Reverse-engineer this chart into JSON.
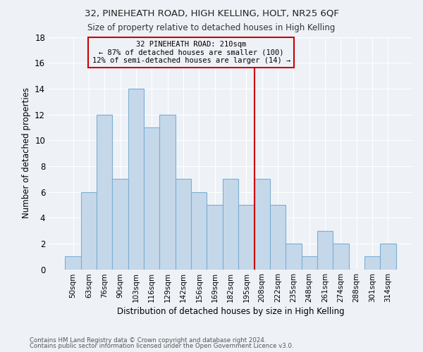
{
  "title": "32, PINEHEATH ROAD, HIGH KELLING, HOLT, NR25 6QF",
  "subtitle": "Size of property relative to detached houses in High Kelling",
  "xlabel": "Distribution of detached houses by size in High Kelling",
  "ylabel": "Number of detached properties",
  "footnote1": "Contains HM Land Registry data © Crown copyright and database right 2024.",
  "footnote2": "Contains public sector information licensed under the Open Government Licence v3.0.",
  "bar_labels": [
    "50sqm",
    "63sqm",
    "76sqm",
    "90sqm",
    "103sqm",
    "116sqm",
    "129sqm",
    "142sqm",
    "156sqm",
    "169sqm",
    "182sqm",
    "195sqm",
    "208sqm",
    "222sqm",
    "235sqm",
    "248sqm",
    "261sqm",
    "274sqm",
    "288sqm",
    "301sqm",
    "314sqm"
  ],
  "bar_values": [
    1,
    6,
    12,
    7,
    14,
    11,
    12,
    7,
    6,
    5,
    7,
    5,
    7,
    5,
    2,
    1,
    3,
    2,
    0,
    1,
    2
  ],
  "bar_color": "#c5d8ea",
  "bar_edge_color": "#7bafd4",
  "ylim": [
    0,
    18
  ],
  "yticks": [
    0,
    2,
    4,
    6,
    8,
    10,
    12,
    14,
    16,
    18
  ],
  "vline_x": 12.0,
  "vline_color": "#cc0000",
  "annotation_title": "32 PINEHEATH ROAD: 210sqm",
  "annotation_line1": "← 87% of detached houses are smaller (100)",
  "annotation_line2": "12% of semi-detached houses are larger (14) →",
  "annotation_box_color": "#cc0000",
  "background_color": "#eef2f7",
  "grid_color": "#ffffff"
}
